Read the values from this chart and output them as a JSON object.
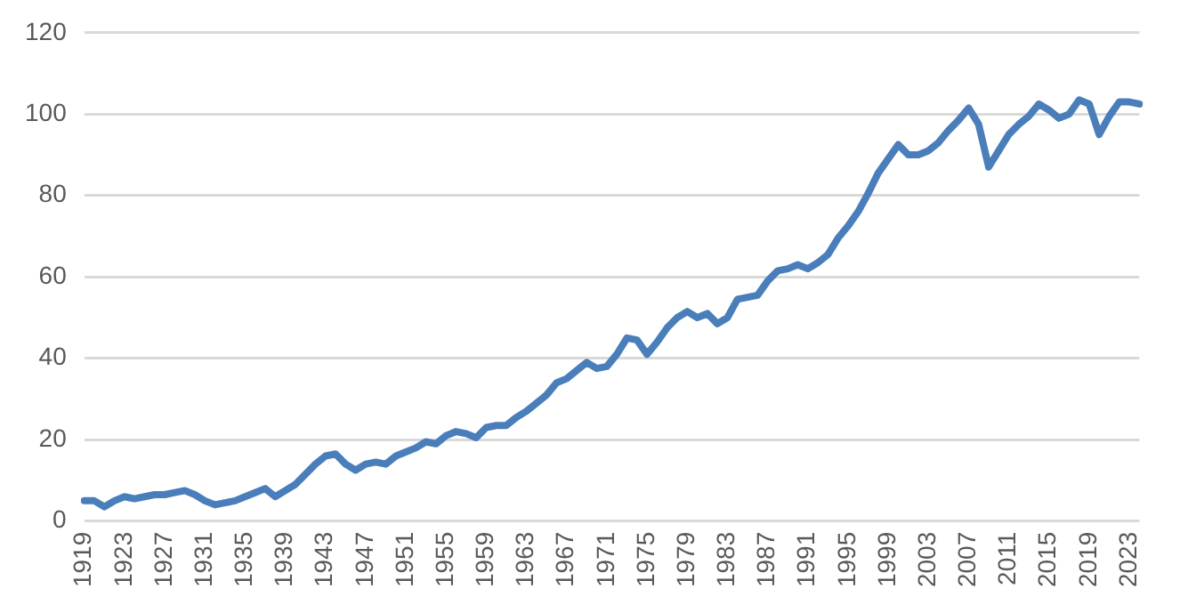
{
  "chart_data": {
    "type": "line",
    "categories": [
      "1919",
      null,
      null,
      null,
      "1923",
      null,
      null,
      null,
      "1927",
      null,
      null,
      null,
      "1931",
      null,
      null,
      null,
      "1935",
      null,
      null,
      null,
      "1939",
      null,
      null,
      null,
      "1943",
      null,
      null,
      null,
      "1947",
      null,
      null,
      null,
      "1951",
      null,
      null,
      null,
      "1955",
      null,
      null,
      null,
      "1959",
      null,
      null,
      null,
      "1963",
      null,
      null,
      null,
      "1967",
      null,
      null,
      null,
      "1971",
      null,
      null,
      null,
      "1975",
      null,
      null,
      null,
      "1979",
      null,
      null,
      null,
      "1983",
      null,
      null,
      null,
      "1987",
      null,
      null,
      null,
      "1991",
      null,
      null,
      null,
      "1995",
      null,
      null,
      null,
      "1999",
      null,
      null,
      null,
      "2003",
      null,
      null,
      null,
      "2007",
      null,
      null,
      null,
      "2011",
      null,
      null,
      null,
      "2015",
      null,
      null,
      null,
      "2019",
      null,
      null,
      null,
      "2023",
      null
    ],
    "series": [
      {
        "color": "#4a7ebb",
        "values": [
          5,
          5,
          3.5,
          5,
          6,
          5.5,
          6,
          6.5,
          6.5,
          7,
          7.5,
          6.5,
          5,
          4,
          4.5,
          5,
          6,
          7,
          8,
          6,
          7.5,
          9,
          11.5,
          14,
          16,
          16.5,
          14,
          12.5,
          14,
          14.5,
          14,
          16,
          17,
          18,
          19.5,
          19,
          21,
          22,
          21.5,
          20.5,
          23,
          23.5,
          23.5,
          25.5,
          27,
          29,
          31,
          34,
          35,
          37,
          39,
          37.5,
          38,
          41,
          45,
          44.5,
          41,
          44,
          47.5,
          50,
          51.5,
          50,
          51,
          48.5,
          50,
          54.5,
          55,
          55.5,
          59,
          61.5,
          62,
          63,
          62,
          63.5,
          65.5,
          69.5,
          72.5,
          76,
          80.5,
          85.5,
          89,
          92.5,
          90,
          90,
          91,
          93,
          96,
          98.5,
          101.5,
          97.5,
          87,
          91,
          95,
          97.5,
          99.5,
          102.5,
          101,
          99,
          100,
          103.5,
          102.5,
          95,
          99.5,
          103,
          103,
          102.5
        ]
      }
    ],
    "ylim": [
      0,
      120
    ],
    "yticks": [
      0,
      20,
      40,
      60,
      80,
      100,
      120
    ],
    "grid": "y",
    "legend": false,
    "marker": "none",
    "line_style": "solid"
  }
}
